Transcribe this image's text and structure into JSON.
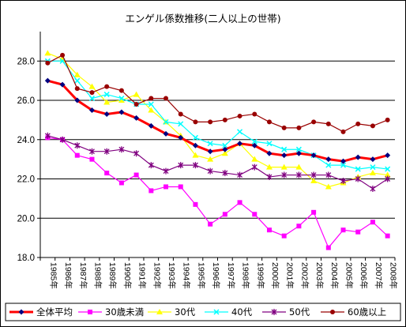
{
  "chart_data": {
    "type": "line",
    "title": "エンゲル係数推移(二人以上の世帯)",
    "ylim": [
      18.0,
      29.5
    ],
    "yticks": [
      "18.0",
      "20.0",
      "22.0",
      "24.0",
      "26.0",
      "28.0"
    ],
    "grid": true,
    "legend_position": "bottom",
    "categories": [
      "1985年",
      "1986年",
      "1987年",
      "1988年",
      "1989年",
      "1990年",
      "1991年",
      "1992年",
      "1993年",
      "1994年",
      "1995年",
      "1996年",
      "1997年",
      "1998年",
      "1999年",
      "2000年",
      "2001年",
      "2002年",
      "2003年",
      "2004年",
      "2005年",
      "2006年",
      "2007年",
      "2008年"
    ],
    "series": [
      {
        "name": "全体平均",
        "color": "#ff0000",
        "marker": "diamond",
        "marker_color": "#000080",
        "values": [
          27.0,
          26.8,
          26.0,
          25.5,
          25.3,
          25.4,
          25.1,
          24.7,
          24.3,
          24.1,
          23.7,
          23.4,
          23.5,
          23.8,
          23.7,
          23.3,
          23.2,
          23.3,
          23.2,
          23.0,
          22.9,
          23.1,
          23.0,
          23.2
        ]
      },
      {
        "name": "30歳未満",
        "color": "#ff00ff",
        "marker": "square",
        "marker_color": "#ff00ff",
        "values": [
          24.1,
          24.0,
          23.2,
          23.0,
          22.3,
          21.8,
          22.2,
          21.4,
          21.6,
          21.6,
          20.7,
          19.7,
          20.2,
          20.8,
          20.2,
          19.4,
          19.1,
          19.6,
          20.3,
          18.5,
          19.4,
          19.3,
          19.8,
          19.1
        ]
      },
      {
        "name": "30代",
        "color": "#ffff00",
        "marker": "triangle",
        "marker_color": "#ffff00",
        "values": [
          28.4,
          28.1,
          27.3,
          26.7,
          25.9,
          26.0,
          26.3,
          25.5,
          24.9,
          24.2,
          23.2,
          23.0,
          23.3,
          23.8,
          23.0,
          22.6,
          22.6,
          22.6,
          21.9,
          21.6,
          21.8,
          22.1,
          22.3,
          22.2
        ]
      },
      {
        "name": "40代",
        "color": "#00ffff",
        "marker": "x",
        "marker_color": "#00ffff",
        "values": [
          28.0,
          28.0,
          27.0,
          26.1,
          26.3,
          26.1,
          25.8,
          25.8,
          24.9,
          24.8,
          24.1,
          23.8,
          23.7,
          24.4,
          23.9,
          23.8,
          23.5,
          23.5,
          23.2,
          22.7,
          22.7,
          22.5,
          22.6,
          22.5
        ]
      },
      {
        "name": "50代",
        "color": "#800080",
        "marker": "star",
        "marker_color": "#800080",
        "values": [
          24.2,
          24.0,
          23.7,
          23.4,
          23.4,
          23.5,
          23.3,
          22.7,
          22.4,
          22.7,
          22.7,
          22.4,
          22.3,
          22.2,
          22.6,
          22.1,
          22.2,
          22.2,
          22.2,
          22.2,
          21.9,
          22.0,
          21.5,
          22.0
        ]
      },
      {
        "name": "60歳以上",
        "color": "#990000",
        "marker": "circle",
        "marker_color": "#990000",
        "values": [
          27.9,
          28.3,
          26.6,
          26.4,
          26.7,
          26.5,
          25.8,
          26.1,
          26.1,
          25.3,
          24.9,
          24.9,
          25.0,
          25.2,
          25.3,
          24.9,
          24.6,
          24.6,
          24.9,
          24.8,
          24.4,
          24.8,
          24.7,
          25.0
        ]
      }
    ]
  }
}
